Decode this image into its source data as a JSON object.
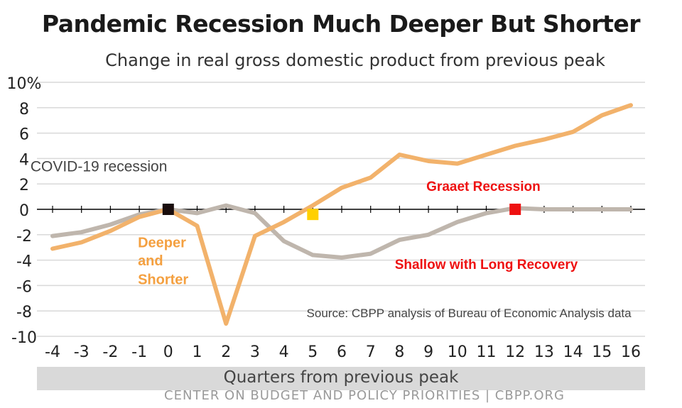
{
  "title": "Pandemic Recession Much Deeper But Shorter",
  "subtitle": "Change in real gross domestic product from previous peak",
  "xlabel": "Quarters from previous peak",
  "footer": "CENTER ON BUDGET AND POLICY PRIORITIES | CBPP.ORG",
  "colors": {
    "covid": "#f2b26b",
    "great_recession": "#bfb6ad",
    "zero_line": "#000000",
    "grid": "#d9d9d9",
    "annot_orange": "#f4a040",
    "annot_red": "#ee1111",
    "marker_black": "#1a0d0d",
    "marker_yellow": "#ffd000",
    "marker_red": "#ee1111"
  },
  "chart_data": {
    "type": "line",
    "title": "Pandemic Recession Much Deeper But Shorter",
    "subtitle": "Change in real gross domestic product from previous peak",
    "xlabel": "Quarters from previous peak",
    "ylabel": "",
    "x": [
      -4,
      -3,
      -2,
      -1,
      0,
      1,
      2,
      3,
      4,
      5,
      6,
      7,
      8,
      9,
      10,
      11,
      12,
      13,
      14,
      15,
      16
    ],
    "xlim": [
      -4,
      16
    ],
    "ylim": [
      -10,
      10
    ],
    "yticks": [
      10,
      8,
      6,
      4,
      2,
      0,
      -2,
      -4,
      -6,
      -8,
      -10
    ],
    "ytick_labels": [
      "10%",
      "8",
      "6",
      "4",
      "2",
      "0",
      "-2",
      "-4",
      "-6",
      "-8",
      "-10"
    ],
    "grid": true,
    "series": [
      {
        "key": "covid",
        "values": [
          -3.1,
          -2.6,
          -1.7,
          -0.6,
          0.0,
          -1.3,
          -9.0,
          -2.1,
          -1.0,
          0.3,
          1.7,
          2.5,
          4.3,
          3.8,
          3.6,
          4.3,
          5.0,
          5.5,
          6.1,
          7.4,
          8.2
        ]
      },
      {
        "key": "great_recession",
        "values": [
          -2.1,
          -1.8,
          -1.2,
          -0.4,
          0.0,
          -0.3,
          0.3,
          -0.3,
          -2.5,
          -3.6,
          -3.8,
          -3.5,
          -2.4,
          -2.0,
          -1.0,
          -0.3,
          0.1,
          0.0,
          0.0,
          0.0,
          0.0
        ]
      }
    ],
    "markers": [
      {
        "x": 0,
        "y": 0.0,
        "color": "#1a0d0d"
      },
      {
        "x": 5,
        "y": -0.4,
        "color": "#ffd000"
      },
      {
        "x": 12,
        "y": 0.0,
        "color": "#ee1111"
      }
    ],
    "annotations": [
      {
        "text": "COVID-19 recession",
        "x": -2.4,
        "y": 3.0,
        "color": "#444444",
        "style": "normal"
      },
      {
        "text": "Graaet Recession",
        "x": 10.9,
        "y": 1.45,
        "color": "#ee1111",
        "style": "bold"
      },
      {
        "text": "Shallow with Long Recovery",
        "x": 11.0,
        "y": -4.7,
        "color": "#ee1111",
        "style": "bold"
      },
      {
        "text": "Deeper",
        "x": -1.05,
        "y": -3.0,
        "color": "#f4a040",
        "style": "bold"
      },
      {
        "text": "and",
        "x": -1.05,
        "y": -4.4,
        "color": "#f4a040",
        "style": "bold"
      },
      {
        "text": "Shorter",
        "x": -1.05,
        "y": -5.9,
        "color": "#f4a040",
        "style": "bold"
      },
      {
        "text": "Source: CBPP analysis of Bureau of Economic Analysis data",
        "x": 10.4,
        "y": -8.5,
        "color": "#444444",
        "style": "normal"
      }
    ]
  }
}
